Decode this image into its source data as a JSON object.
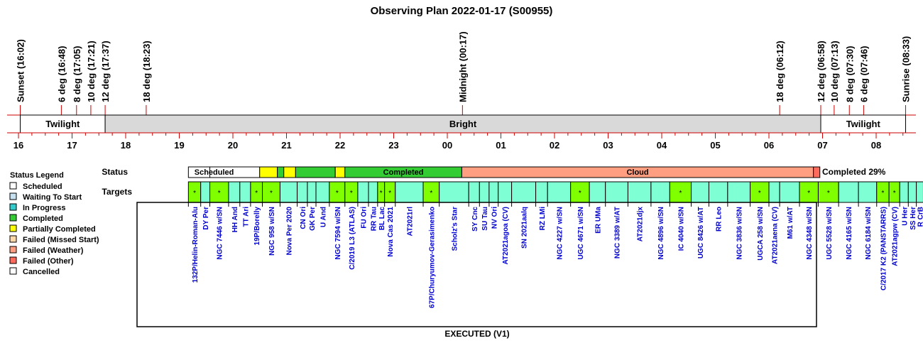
{
  "chart_data": {
    "type": "timeline",
    "title": "Observing Plan 2022-01-17 (S00955)",
    "footer": "EXECUTED (V1)",
    "completion_label": "Completed 29%",
    "time_axis": {
      "start_hour": 16.0,
      "end_hour": 32.65,
      "hour_labels": [
        "16",
        "17",
        "18",
        "19",
        "20",
        "21",
        "22",
        "23",
        "00",
        "01",
        "02",
        "03",
        "04",
        "05",
        "06",
        "07",
        "08"
      ]
    },
    "events": [
      {
        "label": "Sunset (16:02)",
        "t": 16.033
      },
      {
        "label": "6 deg (16:48)",
        "t": 16.8
      },
      {
        "label": "8 deg (17:05)",
        "t": 17.083
      },
      {
        "label": "10 deg (17:21)",
        "t": 17.35
      },
      {
        "label": "12 deg (17:37)",
        "t": 17.617
      },
      {
        "label": "18 deg (18:23)",
        "t": 18.383
      },
      {
        "label": "Midnight (00:17)",
        "t": 24.283
      },
      {
        "label": "18 deg (06:12)",
        "t": 30.2
      },
      {
        "label": "12 deg (06:58)",
        "t": 30.967
      },
      {
        "label": "10 deg (07:13)",
        "t": 31.217
      },
      {
        "label": "8 deg (07:30)",
        "t": 31.5
      },
      {
        "label": "6 deg (07:46)",
        "t": 31.767
      },
      {
        "label": "Sunrise (08:33)",
        "t": 32.55
      }
    ],
    "sky_bands": [
      {
        "label": "Twilight",
        "start": 16.033,
        "end": 17.617,
        "color": "#ffffff"
      },
      {
        "label": "Bright",
        "start": 17.617,
        "end": 30.967,
        "color": "#d9d9d9"
      },
      {
        "label": "Twilight",
        "start": 30.967,
        "end": 32.55,
        "color": "#ffffff"
      }
    ],
    "row_labels": {
      "status": "Status",
      "targets": "Targets"
    },
    "status_segments": [
      {
        "label": "Scheduled",
        "start": 19.17,
        "end": 19.57,
        "color": "#ffffff"
      },
      {
        "label": "Scheduled",
        "start": 19.57,
        "end": 20.5,
        "color": "#ffffff"
      },
      {
        "label": "",
        "start": 20.5,
        "end": 20.83,
        "color": "#ffff00"
      },
      {
        "label": "",
        "start": 20.83,
        "end": 20.95,
        "color": "#33cc33"
      },
      {
        "label": "",
        "start": 20.95,
        "end": 21.17,
        "color": "#ffff00"
      },
      {
        "label": "",
        "start": 21.17,
        "end": 21.91,
        "color": "#33cc33"
      },
      {
        "label": "",
        "start": 21.91,
        "end": 22.09,
        "color": "#ffff00"
      },
      {
        "label": "Completed",
        "start": 22.09,
        "end": 24.27,
        "color": "#33cc33"
      },
      {
        "label": "Cloud",
        "start": 24.27,
        "end": 30.83,
        "color": "#ff9e80"
      },
      {
        "label": "",
        "start": 30.83,
        "end": 30.95,
        "color": "#ff6a5a"
      }
    ],
    "status_labels": [
      {
        "label": "Scheduled",
        "start": 19.17,
        "end": 20.13
      },
      {
        "label": "Completed",
        "start": 22.09,
        "end": 24.27
      },
      {
        "label": "Cloud",
        "start": 24.27,
        "end": 30.83
      }
    ],
    "targets": [
      {
        "name": "132P/Helin-Roman-Alu",
        "start": 19.17,
        "end": 19.4,
        "flag": "*"
      },
      {
        "name": "DY Per",
        "start": 19.4,
        "end": 19.57,
        "flag": ""
      },
      {
        "name": "NGC 7446 w/SN",
        "start": 19.57,
        "end": 19.92,
        "flag": "*"
      },
      {
        "name": "HH And",
        "start": 19.92,
        "end": 20.13,
        "flag": ""
      },
      {
        "name": "TT Ari",
        "start": 20.13,
        "end": 20.33,
        "flag": ""
      },
      {
        "name": "19P/Borelly",
        "start": 20.33,
        "end": 20.55,
        "flag": "*"
      },
      {
        "name": "NGC 958 w/SN",
        "start": 20.55,
        "end": 20.88,
        "flag": "*"
      },
      {
        "name": "Nova Per 2020",
        "start": 20.88,
        "end": 21.2,
        "flag": ""
      },
      {
        "name": "CN Ori",
        "start": 21.2,
        "end": 21.39,
        "flag": ""
      },
      {
        "name": "GK Per",
        "start": 21.39,
        "end": 21.55,
        "flag": ""
      },
      {
        "name": "U And",
        "start": 21.55,
        "end": 21.8,
        "flag": ""
      },
      {
        "name": "NGC 7594 w/SN",
        "start": 21.8,
        "end": 22.09,
        "flag": "*"
      },
      {
        "name": "C/2019 L3 (ATLAS)",
        "start": 22.09,
        "end": 22.33,
        "flag": "*"
      },
      {
        "name": "FU Ori",
        "start": 22.33,
        "end": 22.53,
        "flag": ""
      },
      {
        "name": "RR Tau",
        "start": 22.53,
        "end": 22.7,
        "flag": ""
      },
      {
        "name": "BL Lac",
        "start": 22.7,
        "end": 22.83,
        "flag": "*"
      },
      {
        "name": "Nova Cas 2021",
        "start": 22.83,
        "end": 23.03,
        "flag": "*"
      },
      {
        "name": "AT2021rl",
        "start": 23.03,
        "end": 23.55,
        "flag": ""
      },
      {
        "name": "67P/Churyumov-Gerasimenko",
        "start": 23.55,
        "end": 23.85,
        "flag": "*"
      },
      {
        "name": "Scholz's Star",
        "start": 23.85,
        "end": 24.4,
        "flag": ""
      },
      {
        "name": "SY Cnc",
        "start": 24.4,
        "end": 24.6,
        "flag": ""
      },
      {
        "name": "SU Tau",
        "start": 24.6,
        "end": 24.78,
        "flag": ""
      },
      {
        "name": "NV Ori",
        "start": 24.78,
        "end": 24.95,
        "flag": ""
      },
      {
        "name": "AT2021agoa (CV)",
        "start": 24.95,
        "end": 25.2,
        "flag": ""
      },
      {
        "name": "SN 2021aalq",
        "start": 25.2,
        "end": 25.65,
        "flag": ""
      },
      {
        "name": "RZ LMi",
        "start": 25.65,
        "end": 25.87,
        "flag": ""
      },
      {
        "name": "NGC 4227 w/SN",
        "start": 25.87,
        "end": 26.3,
        "flag": ""
      },
      {
        "name": "UGC 4671 w/SN",
        "start": 26.3,
        "end": 26.65,
        "flag": "*"
      },
      {
        "name": "ER UMa",
        "start": 26.65,
        "end": 26.95,
        "flag": ""
      },
      {
        "name": "NGC 3389 w/AT",
        "start": 26.95,
        "end": 27.37,
        "flag": ""
      },
      {
        "name": "AT2021djx",
        "start": 27.37,
        "end": 27.8,
        "flag": ""
      },
      {
        "name": "NGC 4896 w/SN",
        "start": 27.8,
        "end": 28.15,
        "flag": ""
      },
      {
        "name": "IC 4040 w/SN",
        "start": 28.15,
        "end": 28.55,
        "flag": "*"
      },
      {
        "name": "UGC 8426 w/AT",
        "start": 28.55,
        "end": 28.88,
        "flag": ""
      },
      {
        "name": "RR Leo",
        "start": 28.88,
        "end": 29.23,
        "flag": ""
      },
      {
        "name": "NGC 3836 w/SN",
        "start": 29.23,
        "end": 29.65,
        "flag": ""
      },
      {
        "name": "UGCA 258 w/SN",
        "start": 29.65,
        "end": 30.0,
        "flag": "*"
      },
      {
        "name": "AT2021aena (CV)",
        "start": 30.0,
        "end": 30.2,
        "flag": ""
      },
      {
        "name": "M61 w/AT",
        "start": 30.2,
        "end": 30.57,
        "flag": ""
      },
      {
        "name": "NGC 4348 w/SN",
        "start": 30.57,
        "end": 30.92,
        "flag": "*"
      },
      {
        "name": "UGC 5528 w/SN",
        "start": 30.92,
        "end": 31.3,
        "flag": "*"
      },
      {
        "name": "NGC 4165 w/SN",
        "start": 31.3,
        "end": 31.67,
        "flag": ""
      },
      {
        "name": "NGC 6184 w/SN",
        "start": 31.67,
        "end": 32.01,
        "flag": ""
      },
      {
        "name": "C/2017 K2 (PANSTARRS)",
        "start": 32.01,
        "end": 32.24,
        "flag": "*"
      },
      {
        "name": "AT2021agpw (CV)",
        "start": 32.24,
        "end": 32.44,
        "flag": "*"
      },
      {
        "name": "U Her",
        "start": 32.44,
        "end": 32.6,
        "flag": ""
      },
      {
        "name": "SS Her",
        "start": 32.6,
        "end": 32.75,
        "flag": ""
      },
      {
        "name": "R CrB",
        "start": 32.75,
        "end": 32.88,
        "flag": ""
      }
    ],
    "legend": {
      "title": "Status Legend",
      "items": [
        {
          "label": "Scheduled",
          "color": "#ffffff"
        },
        {
          "label": "Waiting To Start",
          "color": "#c6e2f2"
        },
        {
          "label": "In Progress",
          "color": "#33cccc"
        },
        {
          "label": "Completed",
          "color": "#33cc33"
        },
        {
          "label": "Partially Completed",
          "color": "#ffff00"
        },
        {
          "label": "Failed (Missed Start)",
          "color": "#ffd8a8"
        },
        {
          "label": "Failed (Weather)",
          "color": "#ff9e80"
        },
        {
          "label": "Failed (Other)",
          "color": "#ff6a5a"
        },
        {
          "label": "Cancelled",
          "color": "#ffffff"
        }
      ]
    },
    "colors": {
      "target_fill": "#7fffd4",
      "target_flagged": "#80ff00",
      "axis": "#cc0000",
      "target_text": "#0000cc"
    }
  }
}
